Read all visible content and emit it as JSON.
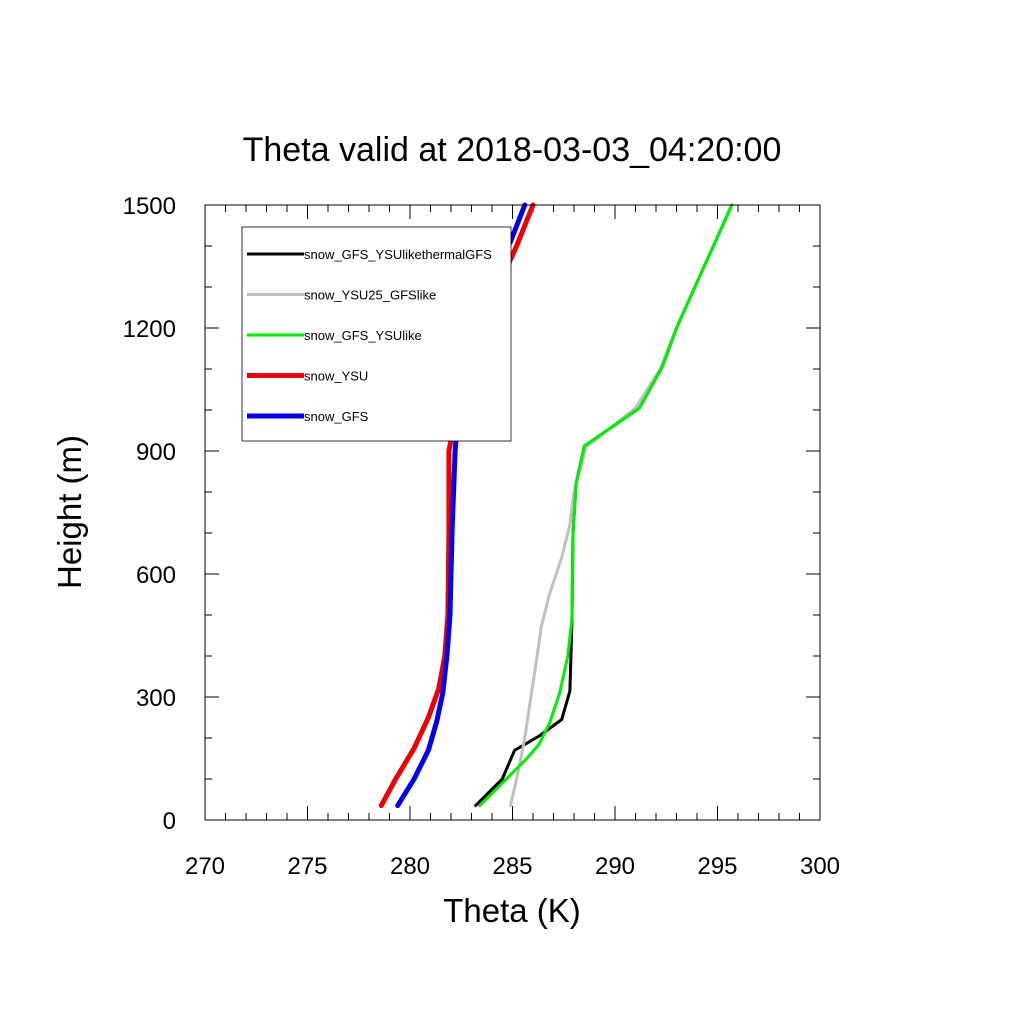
{
  "chart_data": {
    "type": "line",
    "title": "Theta valid at 2018-03-03_04:20:00",
    "xlabel": "Theta (K)",
    "ylabel": "Height (m)",
    "xlim": [
      270,
      300
    ],
    "ylim": [
      0,
      1500
    ],
    "xticks": [
      "270",
      "275",
      "280",
      "285",
      "290",
      "295",
      "300"
    ],
    "yticks": [
      "0",
      "300",
      "600",
      "900",
      "1200",
      "1500"
    ],
    "legend_position": "top-left",
    "series": [
      {
        "name": "snow_GFS_YSUlikethermalGFS",
        "color": "#000000",
        "width": 3,
        "points": [
          [
            283.2,
            35
          ],
          [
            284.5,
            100
          ],
          [
            285.1,
            170
          ],
          [
            286.3,
            205
          ],
          [
            287.4,
            245
          ],
          [
            287.8,
            315
          ],
          [
            287.9,
            480
          ],
          [
            287.95,
            700
          ],
          [
            288.1,
            820
          ],
          [
            288.5,
            912
          ],
          [
            291.2,
            1005
          ],
          [
            292.3,
            1105
          ],
          [
            293.0,
            1200
          ],
          [
            293.9,
            1300
          ],
          [
            294.8,
            1400
          ],
          [
            295.7,
            1500
          ]
        ]
      },
      {
        "name": "snow_YSU25_GFSlike",
        "color": "#c0c0c0",
        "width": 3,
        "points": [
          [
            284.9,
            35
          ],
          [
            285.2,
            100
          ],
          [
            285.6,
            200
          ],
          [
            285.9,
            300
          ],
          [
            286.2,
            400
          ],
          [
            286.4,
            470
          ],
          [
            286.8,
            550
          ],
          [
            287.4,
            640
          ],
          [
            287.8,
            720
          ],
          [
            288.0,
            800
          ],
          [
            288.6,
            910
          ],
          [
            291.0,
            1005
          ],
          [
            292.2,
            1100
          ],
          [
            293.0,
            1200
          ],
          [
            293.9,
            1300
          ],
          [
            294.8,
            1400
          ],
          [
            295.7,
            1500
          ]
        ]
      },
      {
        "name": "snow_GFS_YSUlike",
        "color": "#00ee00",
        "width": 3,
        "points": [
          [
            283.4,
            35
          ],
          [
            284.2,
            75
          ],
          [
            284.9,
            110
          ],
          [
            285.7,
            150
          ],
          [
            286.3,
            185
          ],
          [
            286.8,
            235
          ],
          [
            287.3,
            310
          ],
          [
            287.7,
            400
          ],
          [
            287.9,
            490
          ],
          [
            287.95,
            700
          ],
          [
            288.1,
            820
          ],
          [
            288.5,
            912
          ],
          [
            291.2,
            1005
          ],
          [
            292.3,
            1105
          ],
          [
            293.0,
            1200
          ],
          [
            293.9,
            1300
          ],
          [
            294.8,
            1400
          ],
          [
            295.7,
            1500
          ]
        ]
      },
      {
        "name": "snow_YSU",
        "color": "#ee0000",
        "width": 5,
        "points": [
          [
            278.6,
            35
          ],
          [
            279.3,
            100
          ],
          [
            280.2,
            175
          ],
          [
            280.9,
            250
          ],
          [
            281.4,
            320
          ],
          [
            281.7,
            400
          ],
          [
            281.85,
            500
          ],
          [
            281.9,
            700
          ],
          [
            281.9,
            900
          ],
          [
            282.6,
            1080
          ],
          [
            283.3,
            1180
          ],
          [
            284.3,
            1300
          ],
          [
            285.2,
            1400
          ],
          [
            286.0,
            1500
          ]
        ]
      },
      {
        "name": "snow_GFS",
        "color": "#0000ee",
        "width": 5,
        "points": [
          [
            279.4,
            35
          ],
          [
            280.2,
            100
          ],
          [
            280.9,
            170
          ],
          [
            281.3,
            240
          ],
          [
            281.6,
            310
          ],
          [
            281.8,
            400
          ],
          [
            281.95,
            500
          ],
          [
            282.05,
            700
          ],
          [
            282.2,
            900
          ],
          [
            282.5,
            1090
          ],
          [
            283.0,
            1200
          ],
          [
            283.6,
            1300
          ],
          [
            284.9,
            1410
          ],
          [
            285.6,
            1500
          ]
        ]
      }
    ]
  }
}
